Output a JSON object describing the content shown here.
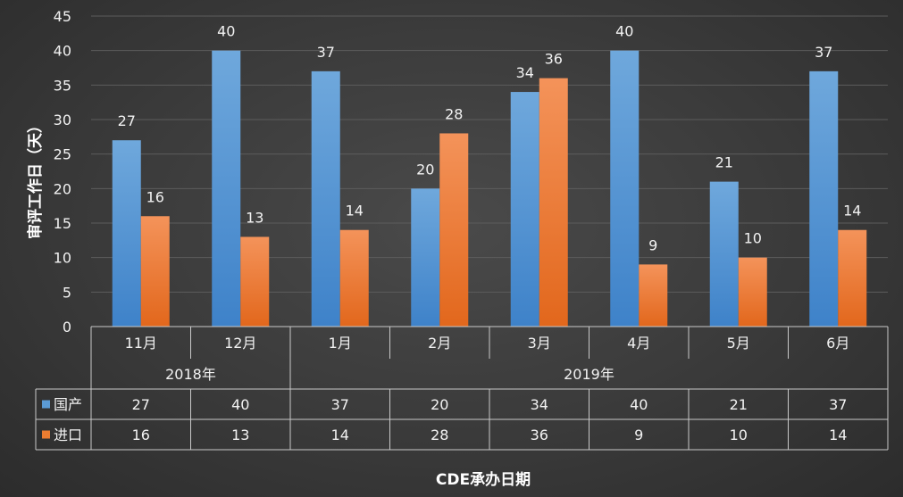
{
  "chart_data": {
    "type": "bar",
    "title": "",
    "xlabel": "CDE承办日期",
    "ylabel": "审评工作日（天）",
    "ylim": [
      0,
      45
    ],
    "yticks": [
      0,
      5,
      10,
      15,
      20,
      25,
      30,
      35,
      40,
      45
    ],
    "grid": true,
    "categories": [
      "11月",
      "12月",
      "1月",
      "2月",
      "3月",
      "4月",
      "5月",
      "6月"
    ],
    "groups": [
      {
        "label": "2018年",
        "span": 2
      },
      {
        "label": "2019年",
        "span": 6
      }
    ],
    "series": [
      {
        "name": "国产",
        "color": "#5B9BD5",
        "values": [
          27,
          40,
          37,
          20,
          34,
          40,
          21,
          37
        ]
      },
      {
        "name": "进口",
        "color": "#ED7D31",
        "values": [
          16,
          13,
          14,
          28,
          36,
          9,
          10,
          14
        ]
      }
    ]
  }
}
